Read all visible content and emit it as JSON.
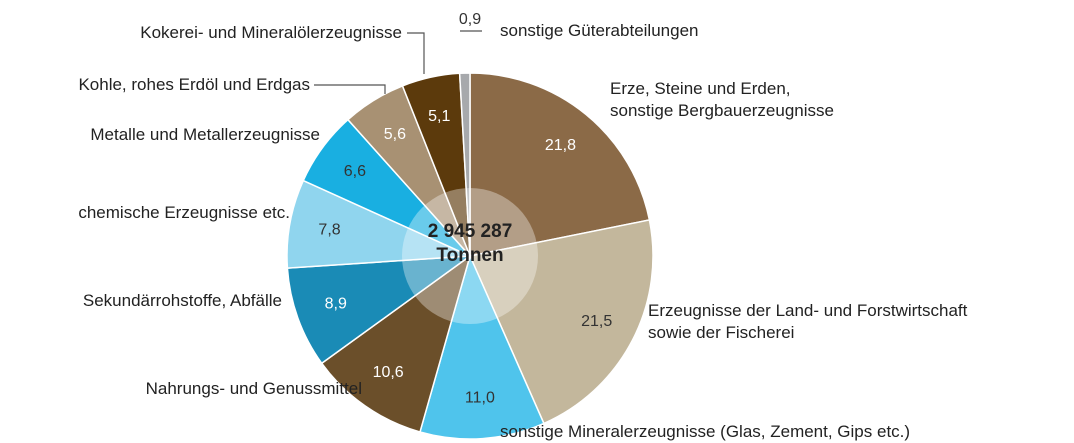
{
  "chart_data": {
    "type": "pie",
    "categories": [
      "Erze, Steine und Erden,\nsonstige Bergbauerzeugnisse",
      "Erzeugnisse der Land- und Forstwirtschaft\nsowie der Fischerei",
      "sonstige Mineralerzeugnisse (Glas, Zement, Gips etc.)",
      "Nahrungs- und Genussmittel",
      "Sekundärrohstoffe, Abfälle",
      "chemische Erzeugnisse etc.",
      "Metalle und Metallerzeugnisse",
      "Kohle, rohes Erdöl und Erdgas",
      "Kokerei- und Mineralölerzeugnisse",
      "sonstige Güterabteilungen"
    ],
    "values": [
      21.8,
      21.5,
      11.0,
      10.6,
      8.9,
      7.8,
      6.6,
      5.6,
      5.1,
      0.9
    ],
    "value_labels": [
      "21,8",
      "21,5",
      "11,0",
      "10,6",
      "8,9",
      "7,8",
      "6,6",
      "5,6",
      "5,1",
      "0,9"
    ],
    "colors": [
      "#8b6a47",
      "#c3b79c",
      "#4fc4ec",
      "#6b4f2a",
      "#1a8bb6",
      "#90d5ee",
      "#19afe1",
      "#a89173",
      "#5c3a0c",
      "#a7a9ac"
    ],
    "total": {
      "value": 2945287,
      "label": "2 945 287"
    },
    "unit": "Tonnen"
  }
}
